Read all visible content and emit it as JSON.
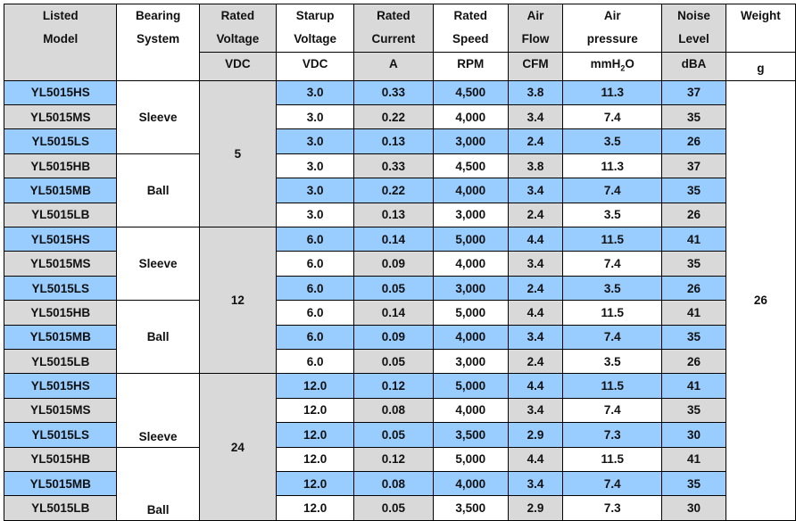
{
  "headers": {
    "model_l1": "Listed",
    "model_l2": "Model",
    "bearing_l1": "Bearing",
    "bearing_l2": "System",
    "ratedv_l1": "Rated",
    "ratedv_l2": "Voltage",
    "ratedv_unit": "VDC",
    "startv_l1": "Starup",
    "startv_l2": "Voltage",
    "startv_unit": "VDC",
    "current_l1": "Rated",
    "current_l2": "Current",
    "current_unit": "A",
    "speed_l1": "Rated",
    "speed_l2": "Speed",
    "speed_unit": "RPM",
    "flow_l1": "Air",
    "flow_l2": "Flow",
    "flow_unit": "CFM",
    "press_l1": "Air",
    "press_l2": "pressure",
    "press_unit_a": "mmH",
    "press_unit_sub": "2",
    "press_unit_b": "O",
    "noise_l1": "Noise",
    "noise_l2": "Level",
    "noise_unit": "dBA",
    "weight_l1": "Weight",
    "weight_unit": "g"
  },
  "groups": [
    {
      "voltage": "5",
      "bearings": [
        "Sleeve",
        "Ball"
      ]
    },
    {
      "voltage": "12",
      "bearings": [
        "Sleeve",
        "Ball"
      ]
    },
    {
      "voltage": "24",
      "bearings": [
        "Sleeve",
        "Ball"
      ]
    }
  ],
  "weight": "26",
  "rows": [
    {
      "model": "YL5015HS",
      "start": "3.0",
      "current": "0.33",
      "speed": "4,500",
      "flow": "3.8",
      "pressure": "11.3",
      "noise": "37"
    },
    {
      "model": "YL5015MS",
      "start": "3.0",
      "current": "0.22",
      "speed": "4,000",
      "flow": "3.4",
      "pressure": "7.4",
      "noise": "35"
    },
    {
      "model": "YL5015LS",
      "start": "3.0",
      "current": "0.13",
      "speed": "3,000",
      "flow": "2.4",
      "pressure": "3.5",
      "noise": "26"
    },
    {
      "model": "YL5015HB",
      "start": "3.0",
      "current": "0.33",
      "speed": "4,500",
      "flow": "3.8",
      "pressure": "11.3",
      "noise": "37"
    },
    {
      "model": "YL5015MB",
      "start": "3.0",
      "current": "0.22",
      "speed": "4,000",
      "flow": "3.4",
      "pressure": "7.4",
      "noise": "35"
    },
    {
      "model": "YL5015LB",
      "start": "3.0",
      "current": "0.13",
      "speed": "3,000",
      "flow": "2.4",
      "pressure": "3.5",
      "noise": "26"
    },
    {
      "model": "YL5015HS",
      "start": "6.0",
      "current": "0.14",
      "speed": "5,000",
      "flow": "4.4",
      "pressure": "11.5",
      "noise": "41"
    },
    {
      "model": "YL5015MS",
      "start": "6.0",
      "current": "0.09",
      "speed": "4,000",
      "flow": "3.4",
      "pressure": "7.4",
      "noise": "35"
    },
    {
      "model": "YL5015LS",
      "start": "6.0",
      "current": "0.05",
      "speed": "3,000",
      "flow": "2.4",
      "pressure": "3.5",
      "noise": "26"
    },
    {
      "model": "YL5015HB",
      "start": "6.0",
      "current": "0.14",
      "speed": "5,000",
      "flow": "4.4",
      "pressure": "11.5",
      "noise": "41"
    },
    {
      "model": "YL5015MB",
      "start": "6.0",
      "current": "0.09",
      "speed": "4,000",
      "flow": "3.4",
      "pressure": "7.4",
      "noise": "35"
    },
    {
      "model": "YL5015LB",
      "start": "6.0",
      "current": "0.05",
      "speed": "3,000",
      "flow": "2.4",
      "pressure": "3.5",
      "noise": "26"
    },
    {
      "model": "YL5015HS",
      "start": "12.0",
      "current": "0.12",
      "speed": "5,000",
      "flow": "4.4",
      "pressure": "11.5",
      "noise": "41"
    },
    {
      "model": "YL5015MS",
      "start": "12.0",
      "current": "0.08",
      "speed": "4,000",
      "flow": "3.4",
      "pressure": "7.4",
      "noise": "35"
    },
    {
      "model": "YL5015LS",
      "start": "12.0",
      "current": "0.05",
      "speed": "3,500",
      "flow": "2.9",
      "pressure": "7.3",
      "noise": "30"
    },
    {
      "model": "YL5015HB",
      "start": "12.0",
      "current": "0.12",
      "speed": "5,000",
      "flow": "4.4",
      "pressure": "11.5",
      "noise": "41"
    },
    {
      "model": "YL5015MB",
      "start": "12.0",
      "current": "0.08",
      "speed": "4,000",
      "flow": "3.4",
      "pressure": "7.4",
      "noise": "35"
    },
    {
      "model": "YL5015LB",
      "start": "12.0",
      "current": "0.05",
      "speed": "3,500",
      "flow": "2.9",
      "pressure": "7.3",
      "noise": "30"
    }
  ],
  "colors": {
    "header_bg": "#d9d9d9",
    "highlight_row": "#99ccff",
    "plain_row": "#ffffff",
    "border": "#000000"
  }
}
